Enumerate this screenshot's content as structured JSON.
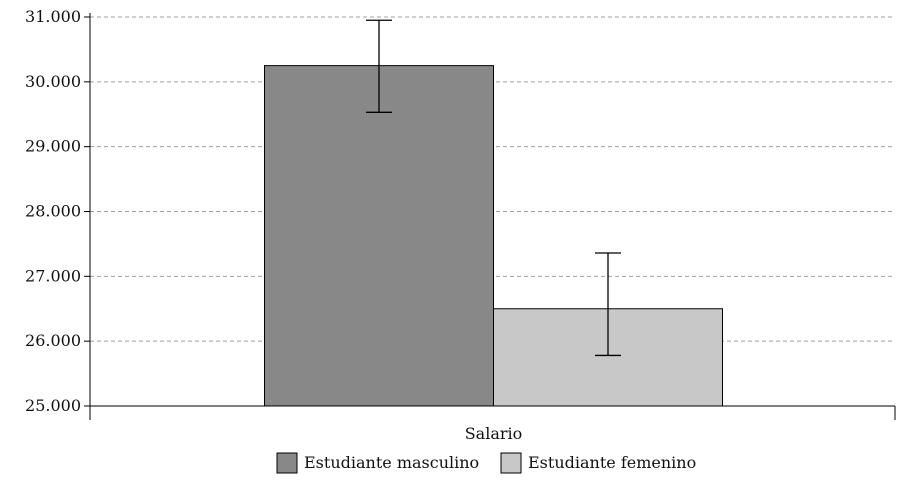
{
  "chart_data": {
    "type": "bar",
    "categories": [
      "Salario"
    ],
    "series": [
      {
        "name": "Estudiante masculino",
        "values": [
          30250
        ],
        "error_low": [
          29530
        ],
        "error_high": [
          30950
        ],
        "color": "#888888"
      },
      {
        "name": "Estudiante femenino",
        "values": [
          26500
        ],
        "error_low": [
          25780
        ],
        "error_high": [
          27360
        ],
        "color": "#c8c8c8"
      }
    ],
    "title": "",
    "xlabel": "",
    "ylabel": "",
    "ylim": [
      25000,
      31000
    ],
    "yticks": [
      25000,
      26000,
      27000,
      28000,
      29000,
      30000,
      31000
    ],
    "ytick_labels": [
      "25.000",
      "26.000",
      "27.000",
      "28.000",
      "29.000",
      "30.000",
      "31.000"
    ],
    "grid": "horizontal dashed",
    "legend_position": "bottom-center",
    "colors": {
      "axis": "#000000",
      "grid": "#a0a0a0",
      "bar_stroke": "#000000"
    }
  }
}
